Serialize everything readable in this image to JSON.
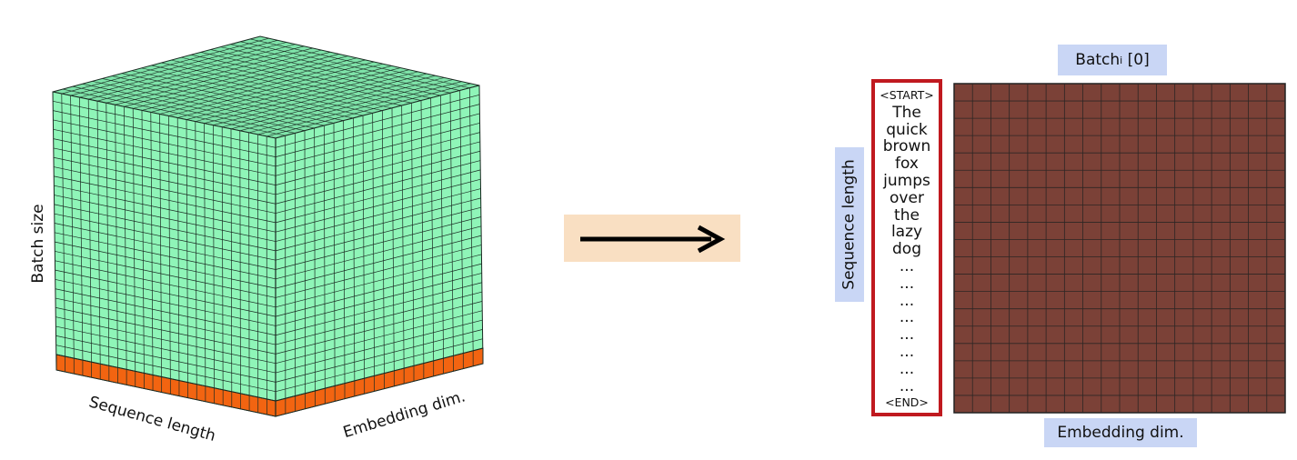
{
  "cube": {
    "batch_axis_label": "Batch size",
    "sequence_axis_label": "Sequence length",
    "embedding_axis_label": "Embedding dim.",
    "face_color": "#8ff5b8",
    "top_color": "#7ee2a8",
    "highlight_color": "#f26411",
    "grid_line_color": "#1a2a22"
  },
  "arrow": {
    "icon": "right-arrow-icon",
    "background_color": "#f9dfc2"
  },
  "matrix": {
    "title_prefix": "Batch",
    "title_subscript": "i",
    "title_suffix": " [0]",
    "row_axis_label": "Sequence length",
    "column_axis_label": "Embedding dim.",
    "cell_color": "#7b4137",
    "tokens": [
      "<START>",
      "The",
      "quick",
      "brown",
      "fox",
      "jumps",
      "over",
      "the",
      "lazy",
      "dog",
      "...",
      "...",
      "...",
      "...",
      "...",
      "...",
      "...",
      "...",
      "<END>"
    ]
  }
}
